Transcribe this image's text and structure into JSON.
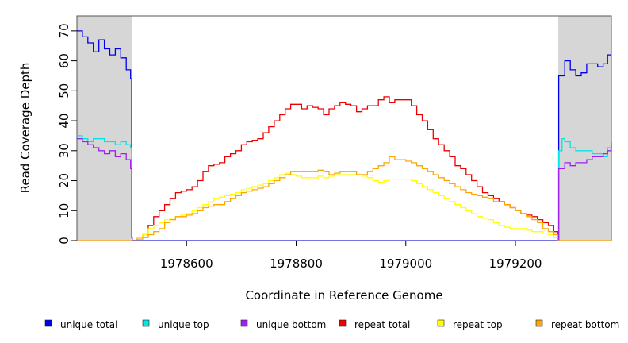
{
  "chart_data": {
    "type": "line",
    "xlabel": "Coordinate in Reference Genome",
    "ylabel": "Read Coverage Depth",
    "xlim": [
      1978400,
      1979375
    ],
    "ylim": [
      0,
      75
    ],
    "x_ticks": [
      1978600,
      1978800,
      1979000,
      1979200
    ],
    "x_tick_labels": [
      "1978600",
      "1978800",
      "1979000",
      "1979200"
    ],
    "y_ticks": [
      0,
      10,
      20,
      30,
      40,
      50,
      60,
      70
    ],
    "y_tick_labels": [
      "0",
      "10",
      "20",
      "30",
      "40",
      "50",
      "60",
      "70"
    ],
    "flanking_regions": [
      [
        1978400,
        1978500
      ],
      [
        1979278,
        1979375
      ]
    ],
    "legend_position": "bottom",
    "series": [
      {
        "name": "unique total",
        "color": "#0000ee",
        "x": [
          1978400,
          1978410,
          1978420,
          1978430,
          1978440,
          1978450,
          1978460,
          1978470,
          1978480,
          1978490,
          1978498,
          1978500,
          1978501,
          1979277,
          1979279,
          1979290,
          1979300,
          1979310,
          1979320,
          1979330,
          1979340,
          1979350,
          1979360,
          1979368,
          1979375
        ],
        "y": [
          70,
          68,
          66,
          63,
          67,
          64,
          62,
          64,
          61,
          57,
          54,
          1,
          0,
          0,
          55,
          60,
          57,
          55,
          56,
          59,
          59,
          58,
          59,
          62,
          62
        ]
      },
      {
        "name": "unique top",
        "color": "#00e5e5",
        "x": [
          1978400,
          1978410,
          1978420,
          1978430,
          1978440,
          1978450,
          1978460,
          1978470,
          1978480,
          1978490,
          1978498,
          1978500,
          1978501,
          1979277,
          1979279,
          1979285,
          1979290,
          1979300,
          1979310,
          1979320,
          1979330,
          1979340,
          1979350,
          1979360,
          1979368,
          1979375
        ],
        "y": [
          35,
          34,
          33,
          34,
          34,
          33,
          33,
          32,
          33,
          32,
          31,
          1,
          0,
          0,
          30,
          34,
          33,
          31,
          30,
          30,
          30,
          29,
          29,
          28,
          31,
          32
        ]
      },
      {
        "name": "unique bottom",
        "color": "#a020f0",
        "x": [
          1978400,
          1978410,
          1978420,
          1978430,
          1978440,
          1978450,
          1978460,
          1978470,
          1978480,
          1978490,
          1978498,
          1978500,
          1978501,
          1979277,
          1979279,
          1979290,
          1979300,
          1979310,
          1979320,
          1979330,
          1979340,
          1979350,
          1979360,
          1979368,
          1979375
        ],
        "y": [
          34,
          33,
          32,
          31,
          30,
          29,
          30,
          28,
          29,
          27,
          24,
          1,
          0,
          0,
          24,
          26,
          25,
          26,
          26,
          27,
          28,
          28,
          29,
          30,
          33
        ]
      },
      {
        "name": "repeat total",
        "color": "#ee0000",
        "x": [
          1978500,
          1978510,
          1978520,
          1978530,
          1978540,
          1978550,
          1978560,
          1978570,
          1978580,
          1978590,
          1978600,
          1978610,
          1978620,
          1978630,
          1978640,
          1978650,
          1978660,
          1978670,
          1978680,
          1978690,
          1978700,
          1978710,
          1978720,
          1978730,
          1978740,
          1978750,
          1978760,
          1978770,
          1978780,
          1978790,
          1978800,
          1978810,
          1978820,
          1978830,
          1978840,
          1978850,
          1978860,
          1978870,
          1978880,
          1978890,
          1978900,
          1978910,
          1978920,
          1978930,
          1978940,
          1978950,
          1978960,
          1978970,
          1978980,
          1978990,
          1979000,
          1979010,
          1979020,
          1979030,
          1979040,
          1979050,
          1979060,
          1979070,
          1979080,
          1979090,
          1979100,
          1979110,
          1979120,
          1979130,
          1979140,
          1979150,
          1979160,
          1979170,
          1979180,
          1979190,
          1979200,
          1979210,
          1979220,
          1979230,
          1979240,
          1979250,
          1979260,
          1979270,
          1979277
        ],
        "y": [
          0,
          1,
          2,
          5,
          8,
          10,
          12,
          14,
          16,
          16.5,
          17,
          18,
          20,
          23,
          25,
          25.5,
          26,
          28,
          29,
          30,
          32,
          33,
          33.5,
          34,
          36,
          38,
          40,
          42,
          44,
          45.5,
          45.5,
          44,
          45,
          44.5,
          44,
          42,
          44,
          45,
          46,
          45.5,
          45,
          43,
          44,
          45,
          45,
          47,
          48,
          46,
          47,
          47,
          47,
          45,
          42,
          40,
          37,
          34,
          32,
          30,
          28,
          25,
          24,
          22,
          20,
          18,
          16,
          15,
          14,
          13,
          12,
          11,
          10,
          9,
          8.5,
          8,
          7,
          6,
          5,
          3,
          0
        ]
      },
      {
        "name": "repeat top",
        "color": "#ffff00",
        "x": [
          1978500,
          1978510,
          1978520,
          1978530,
          1978540,
          1978550,
          1978560,
          1978570,
          1978580,
          1978590,
          1978600,
          1978610,
          1978620,
          1978630,
          1978640,
          1978650,
          1978660,
          1978670,
          1978680,
          1978690,
          1978700,
          1978710,
          1978720,
          1978730,
          1978740,
          1978750,
          1978760,
          1978770,
          1978780,
          1978790,
          1978800,
          1978810,
          1978820,
          1978830,
          1978840,
          1978850,
          1978860,
          1978870,
          1978880,
          1978890,
          1978900,
          1978910,
          1978920,
          1978930,
          1978940,
          1978950,
          1978960,
          1978970,
          1978980,
          1978990,
          1979000,
          1979010,
          1979020,
          1979030,
          1979040,
          1979050,
          1979060,
          1979070,
          1979080,
          1979090,
          1979100,
          1979110,
          1979120,
          1979130,
          1979140,
          1979150,
          1979160,
          1979170,
          1979180,
          1979190,
          1979200,
          1979210,
          1979220,
          1979230,
          1979240,
          1979250,
          1979260,
          1979270,
          1979277
        ],
        "y": [
          0,
          1,
          2,
          4,
          5,
          6,
          7,
          7.5,
          8,
          8.5,
          9,
          10,
          11,
          12,
          13,
          14,
          14.5,
          15,
          15.5,
          16,
          17,
          17.5,
          18,
          18.5,
          19,
          20,
          21,
          22,
          22.5,
          22,
          21.5,
          21,
          21,
          21,
          21.5,
          21,
          21.5,
          22,
          22,
          22,
          22,
          22,
          21.5,
          21,
          20,
          19.5,
          20,
          20.5,
          20.5,
          20.5,
          20.5,
          20,
          19,
          18,
          17,
          16,
          15,
          14,
          13,
          12,
          11,
          10,
          9,
          8,
          7.5,
          7,
          6,
          5,
          4.5,
          4,
          4,
          4,
          3.5,
          3,
          3,
          2.5,
          2,
          1,
          0
        ]
      },
      {
        "name": "repeat bottom",
        "color": "#ffa500",
        "x": [
          1978500,
          1978510,
          1978520,
          1978530,
          1978540,
          1978550,
          1978560,
          1978570,
          1978580,
          1978590,
          1978600,
          1978610,
          1978620,
          1978630,
          1978640,
          1978650,
          1978660,
          1978670,
          1978680,
          1978690,
          1978700,
          1978710,
          1978720,
          1978730,
          1978740,
          1978750,
          1978760,
          1978770,
          1978780,
          1978790,
          1978800,
          1978810,
          1978820,
          1978830,
          1978840,
          1978850,
          1978860,
          1978870,
          1978880,
          1978890,
          1978900,
          1978910,
          1978920,
          1978930,
          1978940,
          1978950,
          1978960,
          1978970,
          1978980,
          1978990,
          1979000,
          1979010,
          1979020,
          1979030,
          1979040,
          1979050,
          1979060,
          1979070,
          1979080,
          1979090,
          1979100,
          1979110,
          1979120,
          1979130,
          1979140,
          1979150,
          1979160,
          1979170,
          1979180,
          1979190,
          1979200,
          1979210,
          1979220,
          1979230,
          1979240,
          1979250,
          1979260,
          1979270,
          1979277
        ],
        "y": [
          0,
          0.5,
          1,
          2,
          3,
          4,
          6,
          7,
          8,
          8,
          8.5,
          9,
          10,
          11,
          11.5,
          12,
          12,
          13,
          14,
          15,
          16,
          16.5,
          17,
          17.5,
          18,
          19,
          20,
          21,
          22,
          23,
          23,
          23,
          23,
          23,
          23.5,
          23,
          22,
          22.5,
          23,
          23,
          23,
          22,
          22,
          23,
          24,
          25,
          26,
          28,
          27,
          27,
          26.5,
          26,
          25,
          24,
          23,
          22,
          21,
          20,
          19,
          18,
          17,
          16,
          15.5,
          15,
          14.5,
          14,
          13,
          13,
          12,
          11,
          10,
          9,
          8,
          7,
          6,
          4,
          3,
          2,
          0
        ]
      }
    ]
  },
  "legend": [
    {
      "label": "unique total",
      "color": "#0000ee"
    },
    {
      "label": "unique top",
      "color": "#00e5e5"
    },
    {
      "label": "unique bottom",
      "color": "#a020f0"
    },
    {
      "label": "repeat total",
      "color": "#ee0000"
    },
    {
      "label": "repeat top",
      "color": "#ffff00"
    },
    {
      "label": "repeat bottom",
      "color": "#ffa500"
    }
  ]
}
